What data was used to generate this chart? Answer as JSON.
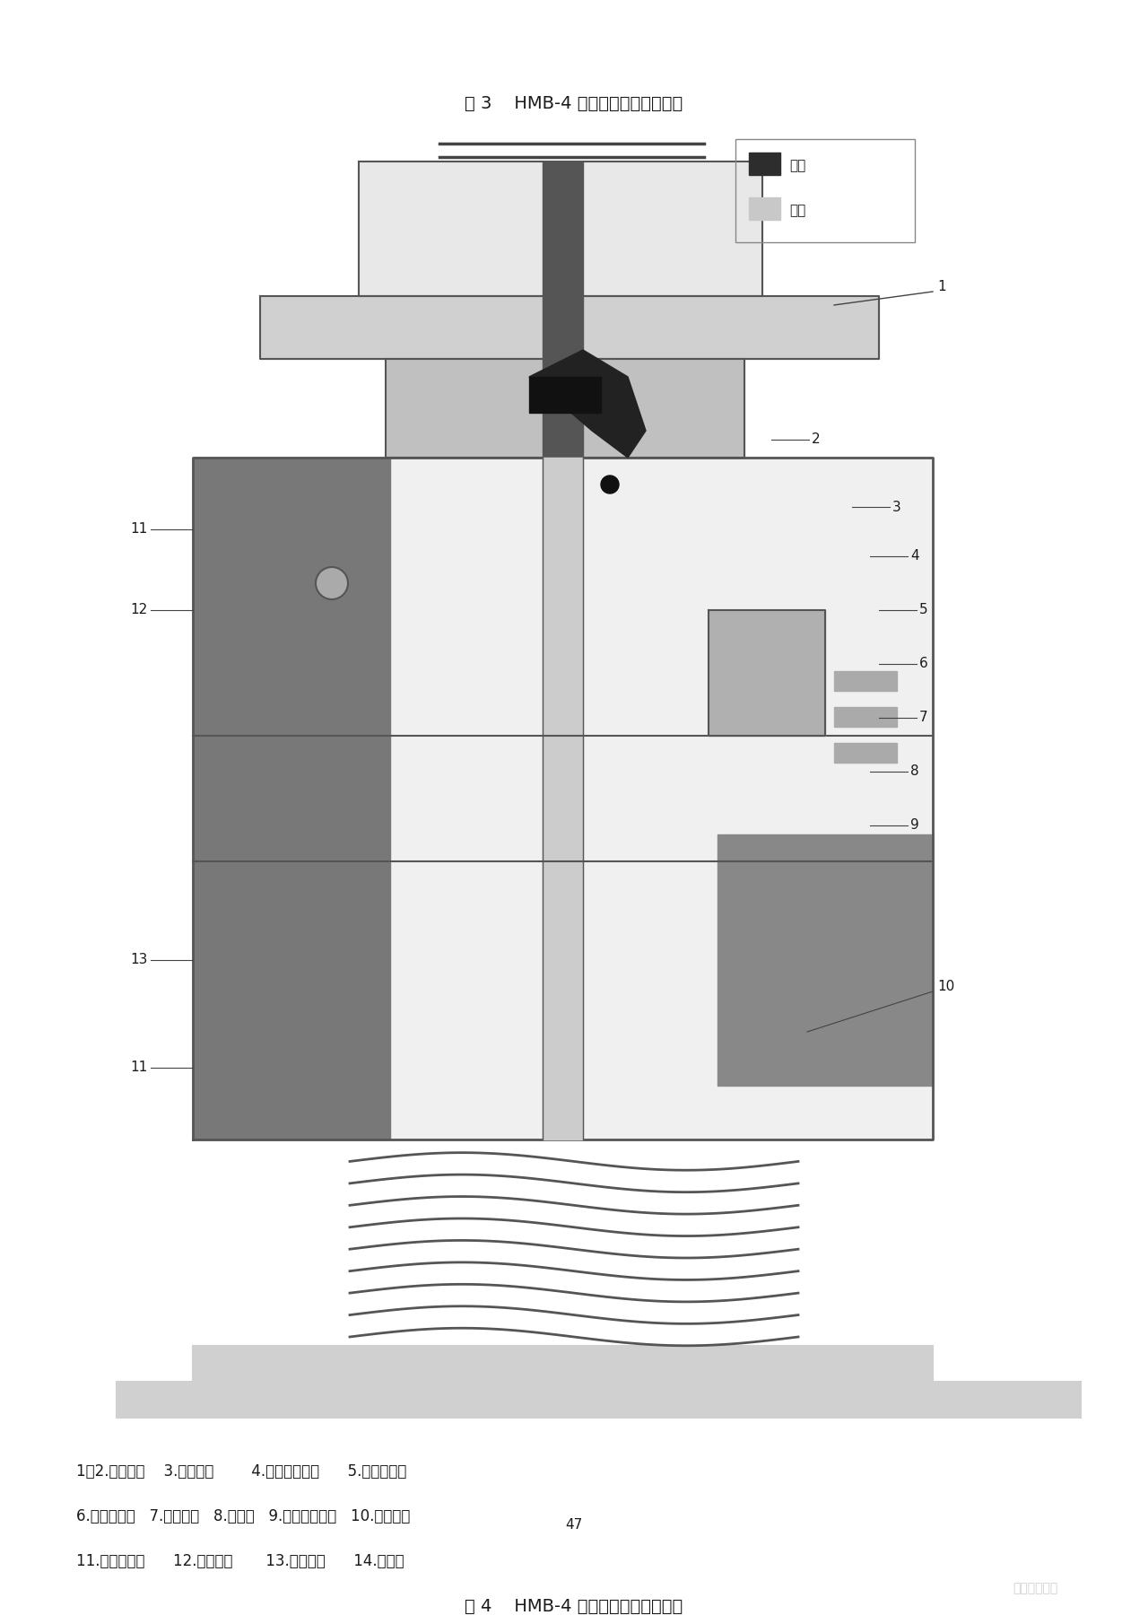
{
  "title3": "图 3    HMB-4 液压弹簧机构合闸位置",
  "title4": "图 4    HMB-4 液压弹簧机构分闸位置",
  "legend_high": "高压",
  "legend_low": "低压",
  "page_number": "47",
  "watermark": "电力专家联盟",
  "caption_line1": "1，2.辅助开关    3.低压接头        4.合闸节流螺塞      5.合闸控制阀",
  "caption_line2": "6.分闸控制阀   7.控制模块   8.换向阀   9.分闸节流螺塞   10.碟簧装置",
  "caption_line3": "11.油位观察窗      12.贮能模块       13.贮能活塞      14.支撑环",
  "bg_color": "#ffffff",
  "text_color": "#1a1a1a",
  "legend_high_color": "#2d2d2d",
  "legend_low_color": "#c8c8c8",
  "fig_title_fontsize": 14,
  "caption_fontsize": 12,
  "page_num_fontsize": 11
}
